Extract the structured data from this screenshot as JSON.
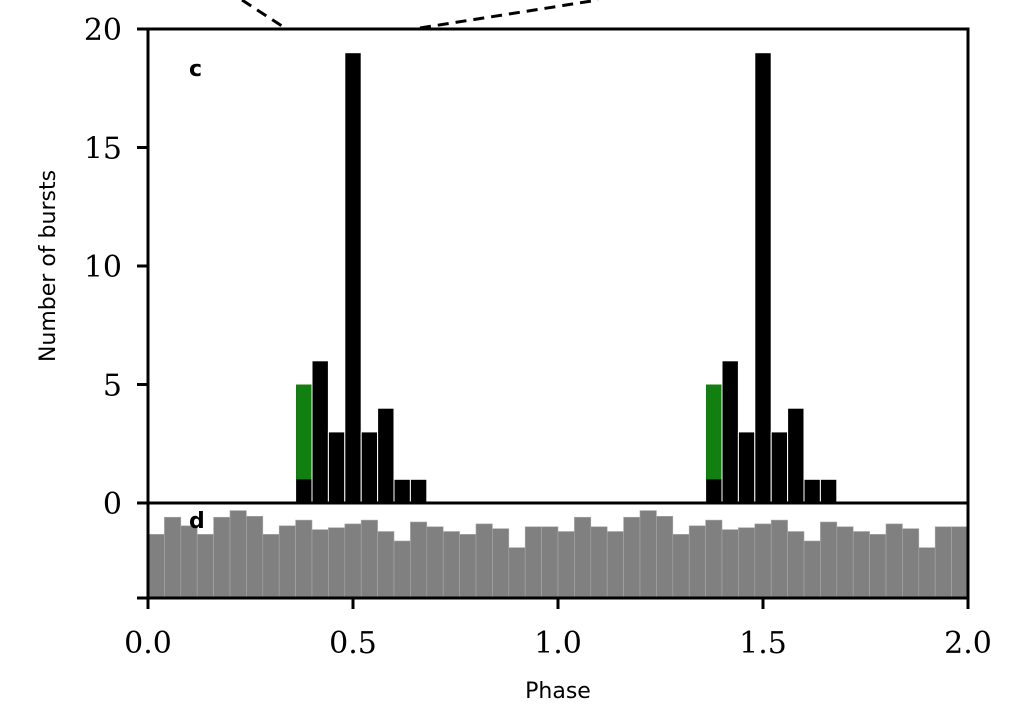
{
  "chart_data": [
    {
      "panel": "c",
      "type": "bar",
      "panel_label": "c",
      "xlabel": "Phase",
      "ylabel": "Number of bursts",
      "xlim": [
        0.0,
        2.0
      ],
      "ylim": [
        0,
        20
      ],
      "xticks": [
        "0.0",
        "0.5",
        "1.0",
        "1.5",
        "2.0"
      ],
      "yticks": [
        "0",
        "5",
        "10",
        "15",
        "20"
      ],
      "bin_width": 0.04,
      "colors": {
        "total": "#000000",
        "highlight": "#118011"
      },
      "series": [
        {
          "bin_starts": [
            0.36,
            0.4,
            0.44,
            0.48,
            0.52,
            0.56,
            0.6,
            0.64,
            1.36,
            1.4,
            1.44,
            1.48,
            1.52,
            1.56,
            1.6,
            1.64
          ],
          "values": [
            5,
            6,
            3,
            19,
            3,
            4,
            1,
            1,
            5,
            6,
            3,
            19,
            3,
            4,
            1,
            1
          ]
        },
        {
          "bin_starts": [
            0.36,
            1.36
          ],
          "values": [
            4,
            4
          ],
          "stacked_on": [
            1,
            1
          ]
        }
      ]
    },
    {
      "panel": "d",
      "type": "bar",
      "panel_label": "d",
      "xlim": [
        0.0,
        2.0
      ],
      "ylim": [
        0,
        1
      ],
      "bin_width": 0.04,
      "colors": {
        "bars": "#808080"
      },
      "values": [
        0.67,
        0.85,
        0.76,
        0.67,
        0.85,
        0.92,
        0.86,
        0.67,
        0.76,
        0.82,
        0.72,
        0.74,
        0.78,
        0.82,
        0.7,
        0.6,
        0.8,
        0.75,
        0.7,
        0.67,
        0.78,
        0.73,
        0.53,
        0.75,
        0.75,
        0.7,
        0.85,
        0.75,
        0.7,
        0.85,
        0.92,
        0.86,
        0.67,
        0.76,
        0.82,
        0.72,
        0.74,
        0.78,
        0.82,
        0.7,
        0.6,
        0.8,
        0.75,
        0.7,
        0.67,
        0.78,
        0.73,
        0.53,
        0.75,
        0.75
      ]
    }
  ]
}
